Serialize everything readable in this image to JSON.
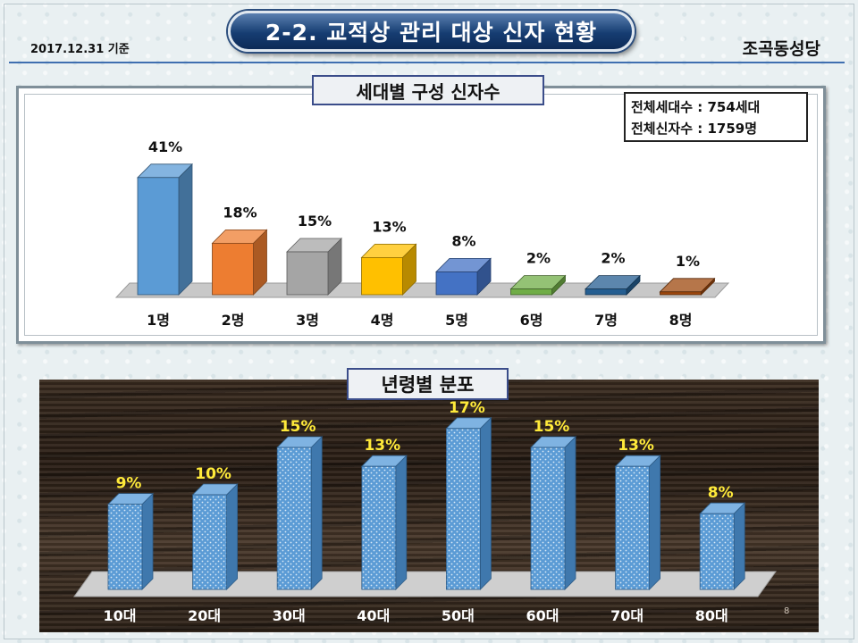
{
  "header": {
    "date": "2017.12.31 기준",
    "title": "2-2. 교적상 관리 대상 신자 현황",
    "organization": "조곡동성당"
  },
  "summary": {
    "households": "전체세대수 : 754세대",
    "members": "전체신자수 : 1759명"
  },
  "page_number": "8",
  "chart_data": [
    {
      "type": "bar",
      "title": "세대별 구성 신자수",
      "categories": [
        "1명",
        "2명",
        "3명",
        "4명",
        "5명",
        "6명",
        "7명",
        "8명"
      ],
      "values": [
        41,
        18,
        15,
        13,
        8,
        2,
        2,
        1
      ],
      "value_labels": [
        "41%",
        "18%",
        "15%",
        "13%",
        "8%",
        "2%",
        "2%",
        "1%"
      ],
      "colors": [
        "#5b9bd5",
        "#ed7d31",
        "#a5a5a5",
        "#ffc000",
        "#4472c4",
        "#70ad47",
        "#255e91",
        "#9e480e"
      ],
      "ylim": [
        0,
        45
      ]
    },
    {
      "type": "bar",
      "title": "년령별 분포",
      "categories": [
        "10대",
        "20대",
        "30대",
        "40대",
        "50대",
        "60대",
        "70대",
        "80대"
      ],
      "values": [
        9,
        10,
        15,
        13,
        17,
        15,
        13,
        8
      ],
      "value_labels": [
        "9%",
        "10%",
        "15%",
        "13%",
        "17%",
        "15%",
        "13%",
        "8%"
      ],
      "colors": [
        "#5b9bd5"
      ],
      "ylim": [
        0,
        18
      ]
    }
  ]
}
